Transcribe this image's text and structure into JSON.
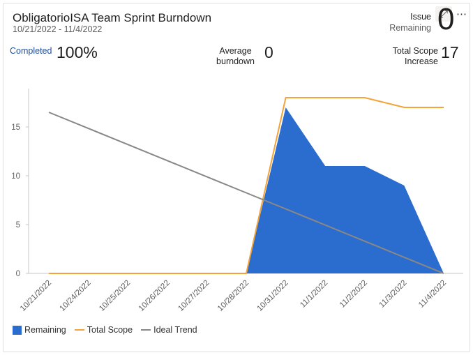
{
  "header": {
    "title": "ObligatorioISA Team Sprint Burndown",
    "date_range": "10/21/2022 - 11/4/2022",
    "expand_icon": "expand-icon",
    "more_icon": "more-options-icon"
  },
  "kpis": {
    "issue_label_line1": "Issue",
    "issue_label_line2": "Remaining",
    "issue_value": "0",
    "completed_label": "Completed",
    "completed_value": "100%",
    "avg_label_line1": "Average",
    "avg_label_line2": "burndown",
    "avg_value": "0",
    "scope_label_line1": "Total Scope",
    "scope_label_line2": "Increase",
    "scope_value": "17"
  },
  "colors": {
    "remaining": "#2b6ccf",
    "total_scope": "#f2a33a",
    "ideal_trend": "#8a8886",
    "completed_label": "#1f4e99"
  },
  "chart_data": {
    "type": "area",
    "categories": [
      "10/21/2022",
      "10/24/2022",
      "10/25/2022",
      "10/26/2022",
      "10/27/2022",
      "10/28/2022",
      "10/31/2022",
      "11/1/2022",
      "11/2/2022",
      "11/3/2022",
      "11/4/2022"
    ],
    "series": [
      {
        "name": "Remaining",
        "type": "area",
        "values": [
          0,
          0,
          0,
          0,
          0,
          0,
          17,
          11,
          11,
          9,
          0
        ]
      },
      {
        "name": "Total Scope",
        "type": "line",
        "values": [
          0,
          0,
          0,
          0,
          0,
          0,
          18,
          18,
          18,
          17,
          17
        ]
      },
      {
        "name": "Ideal Trend",
        "type": "line",
        "values": [
          16.5,
          14.85,
          13.2,
          11.55,
          9.9,
          8.25,
          6.6,
          4.95,
          3.3,
          1.65,
          0
        ]
      }
    ],
    "yticks": [
      0,
      5,
      10,
      15
    ],
    "ylim": [
      0,
      19
    ],
    "xlabel": "",
    "ylabel": "",
    "grid": false,
    "legend_position": "bottom-left"
  }
}
